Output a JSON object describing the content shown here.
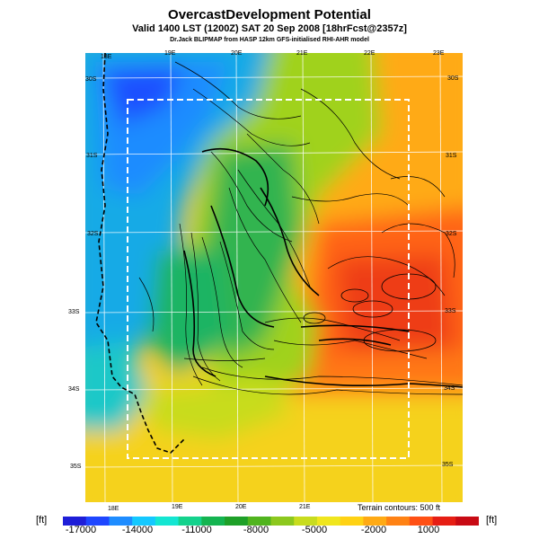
{
  "titles": {
    "main": "OvercastDevelopment Potential",
    "valid": "Valid 1400 LST (1200Z) SAT 20 Sep 2008 [18hrFcst@2357z]",
    "credit": "Dr.Jack BLIPMAP from HASP 12km GFS-initialised RHI-AHR model"
  },
  "lon_labels_top": [
    "18E",
    "19E",
    "20E",
    "21E",
    "22E",
    "23E"
  ],
  "lon_labels_bottom": [
    "18E",
    "19E",
    "20E",
    "21E"
  ],
  "lat_labels_left": [
    "30S",
    "31S",
    "32S",
    "33S",
    "34S",
    "35S"
  ],
  "lat_labels_right": [
    "30S",
    "31S",
    "32S",
    "33S",
    "34S",
    "35S"
  ],
  "terrain_note": "Terrain contours: 500 ft",
  "colorbar": {
    "unit_left": "[ft]",
    "unit_right": "[ft]",
    "tick_labels": [
      "-17000",
      "-14000",
      "-11000",
      "-8000",
      "-5000",
      "-2000",
      "1000"
    ],
    "colors": [
      "#1e1ed8",
      "#1e46ff",
      "#1e8cff",
      "#14c8ff",
      "#14e6d2",
      "#14d28c",
      "#14b450",
      "#1ea028",
      "#50b41e",
      "#8cc81e",
      "#c8dc1e",
      "#f0e61e",
      "#ffd214",
      "#ffaa14",
      "#ff8214",
      "#ff5014",
      "#e61e14",
      "#c80a14"
    ]
  }
}
